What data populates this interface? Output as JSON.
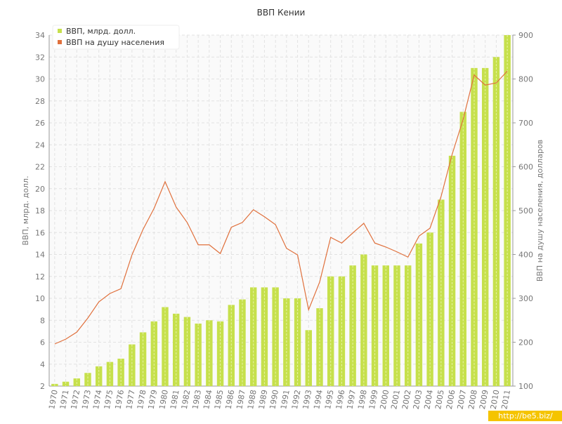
{
  "chart_data": {
    "type": "bar",
    "title": "ВВП Кении",
    "y_label": "ВВП, млрд. долл.",
    "y2_label": "ВВП на душу населения, долларов",
    "watermark": "http://be5.biz/",
    "categories": [
      "1970",
      "1971",
      "1972",
      "1973",
      "1974",
      "1975",
      "1976",
      "1977",
      "1978",
      "1979",
      "1980",
      "1981",
      "1982",
      "1983",
      "1984",
      "1985",
      "1986",
      "1987",
      "1988",
      "1989",
      "1990",
      "1991",
      "1992",
      "1993",
      "1994",
      "1995",
      "1996",
      "1997",
      "1998",
      "1999",
      "2000",
      "2001",
      "2002",
      "2003",
      "2004",
      "2005",
      "2006",
      "2007",
      "2008",
      "2009",
      "2010",
      "2011"
    ],
    "series": [
      {
        "name": "ВВП, млрд. долл.",
        "type": "bar",
        "color": "#c6e04c",
        "values": [
          2.2,
          2.4,
          2.7,
          3.2,
          3.8,
          4.2,
          4.5,
          5.8,
          6.9,
          7.9,
          9.2,
          8.6,
          8.3,
          7.7,
          8.0,
          7.9,
          9.4,
          9.9,
          11,
          11,
          11,
          10,
          10,
          7.1,
          9.1,
          12,
          12,
          13,
          14,
          13,
          13,
          13,
          13,
          15,
          16,
          19,
          23,
          27,
          31,
          31,
          32,
          34
        ]
      },
      {
        "name": "ВВП на душу населения",
        "type": "line",
        "axis": "y2",
        "color": "#e0703c",
        "values": [
          196,
          207,
          223,
          255,
          292,
          311,
          322,
          399,
          457,
          505,
          566,
          508,
          473,
          422,
          422,
          402,
          462,
          473,
          502,
          486,
          468,
          414,
          399,
          274,
          337,
          439,
          426,
          449,
          471,
          426,
          417,
          406,
          394,
          442,
          460,
          532,
          628,
          708,
          809,
          786,
          791,
          818
        ]
      }
    ],
    "ylim": [
      2,
      34
    ],
    "yticks": [
      2,
      4,
      6,
      8,
      10,
      12,
      14,
      16,
      18,
      20,
      22,
      24,
      26,
      28,
      30,
      32,
      34
    ],
    "y2lim": [
      100,
      900
    ],
    "y2ticks": [
      100,
      200,
      300,
      400,
      500,
      600,
      700,
      800,
      900
    ],
    "grid": true,
    "legend": "top-left"
  }
}
